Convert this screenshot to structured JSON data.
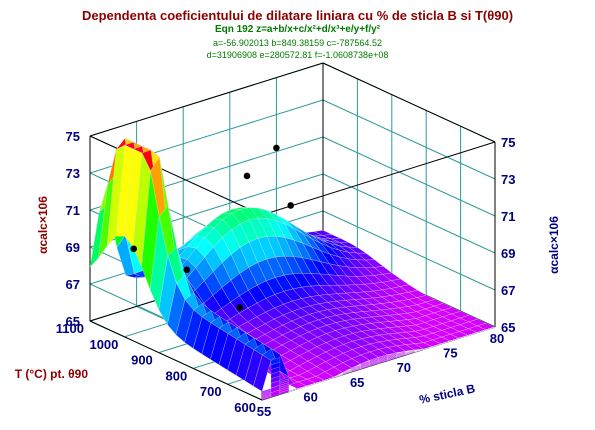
{
  "title": "Dependenta coeficientului de dilatare liniara cu % de sticla B si T(θ90)",
  "equation": "Eqn 192  z=a+b/x+c/x²+d/x³+e/y+f/y²",
  "params_line1": "a=-56.902013 b=849.38159 c=-787564.52",
  "params_line2": "d=31906908 e=280572.81 f=-1.0608738e+08",
  "z_label": "αcalc×106",
  "x_label": "% sticla B",
  "y_label": "T (°C) pt. θ90",
  "colors": {
    "title": "#8b0000",
    "equation": "#007a00",
    "ticks": "#000080",
    "grid": "#2e9a9a"
  },
  "chart_data": {
    "type": "surface3d",
    "equation": "z = a + b/x + c/x^2 + d/x^3 + e/y + f/y^2",
    "coefficients": {
      "a": -56.902013,
      "b": 849.38159,
      "c": -787564.52,
      "d": 31906908,
      "e": 280572.81,
      "f": -106087380
    },
    "x_axis": {
      "label": "% sticla B",
      "range": [
        55,
        80
      ],
      "ticks": [
        "55",
        "60",
        "65",
        "70",
        "75",
        "80"
      ]
    },
    "y_axis": {
      "label": "T (°C) pt. θ90",
      "range": [
        600,
        1100
      ],
      "ticks": [
        "600",
        "700",
        "800",
        "900",
        "1000",
        "1100"
      ]
    },
    "z_axis": {
      "label": "αcalc×106",
      "range": [
        65,
        75
      ],
      "ticks": [
        "65",
        "67",
        "69",
        "71",
        "73",
        "75"
      ]
    },
    "points": [
      {
        "x": 56,
        "y": 1000,
        "z": 69.6
      },
      {
        "x": 58,
        "y": 900,
        "z": 69.0
      },
      {
        "x": 60,
        "y": 800,
        "z": 67.5
      },
      {
        "x": 70,
        "y": 1050,
        "z": 70.9
      },
      {
        "x": 71,
        "y": 950,
        "z": 70.0
      },
      {
        "x": 75,
        "y": 1100,
        "z": 71.2
      }
    ],
    "colormap": "rainbow",
    "grid": true
  }
}
